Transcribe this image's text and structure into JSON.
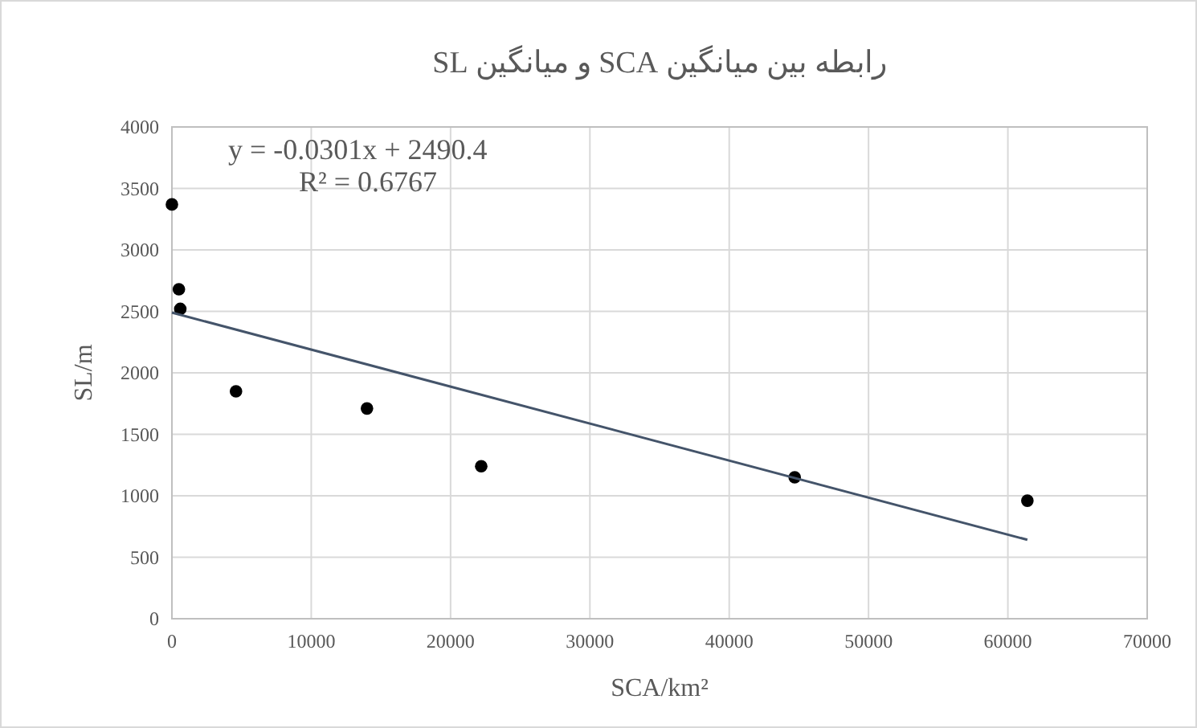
{
  "chart_data": {
    "type": "scatter",
    "title": "رابطه بین میانگین SCA و میانگین SL",
    "xlabel": "SCA/km²",
    "ylabel": "SL/m",
    "xlim": [
      0,
      70000
    ],
    "xticks": [
      0,
      10000,
      20000,
      30000,
      40000,
      50000,
      60000,
      70000
    ],
    "ylim": [
      0,
      4000
    ],
    "yticks": [
      0,
      500,
      1000,
      1500,
      2000,
      2500,
      3000,
      3500,
      4000
    ],
    "grid": true,
    "marker": "circle",
    "series": [
      {
        "type": "scatter",
        "color": "#000000",
        "x": [
          0,
          500,
          600,
          4600,
          14000,
          22200,
          44700,
          61400
        ],
        "values": [
          3370,
          2680,
          2520,
          1850,
          1710,
          1240,
          1150,
          960
        ]
      },
      {
        "type": "line",
        "color": "#44546a",
        "x": [
          0,
          61400
        ],
        "values": [
          2490,
          642
        ],
        "marker": "none"
      }
    ],
    "annotations": [
      "y = -0.0301x + 2490.4",
      "R² = 0.6767"
    ]
  }
}
